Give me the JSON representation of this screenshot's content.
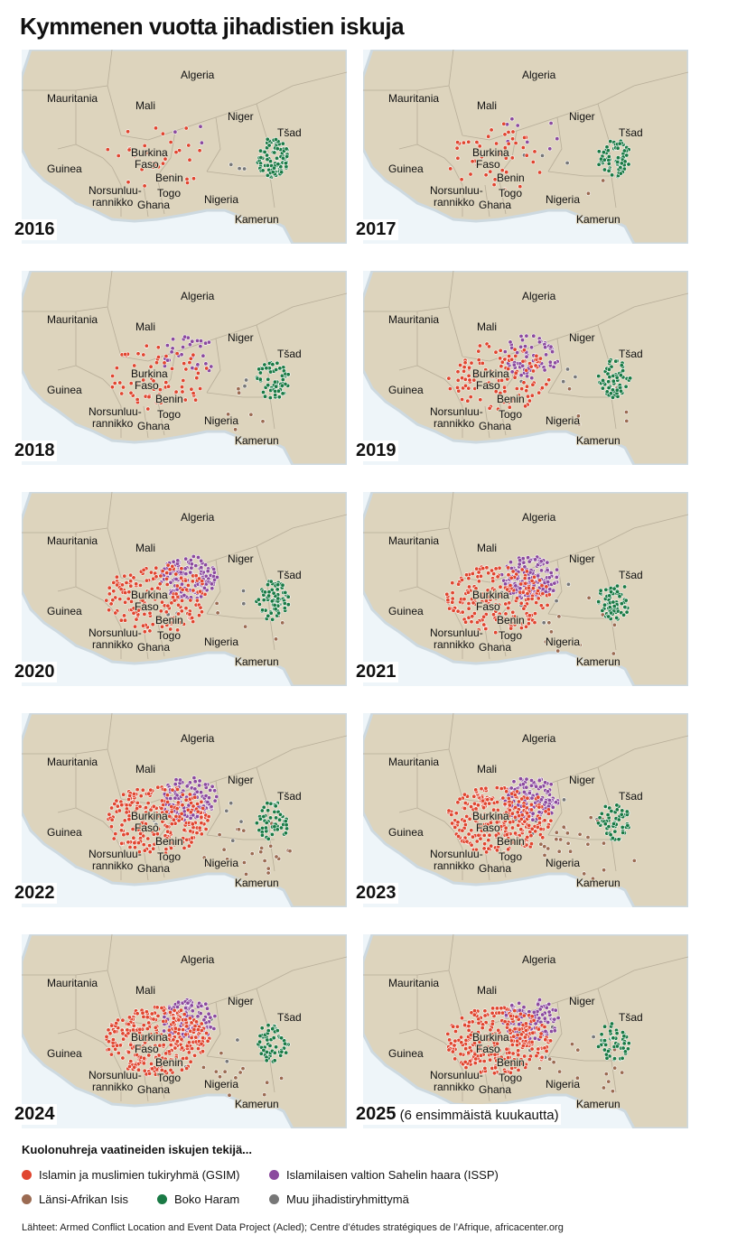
{
  "title": "Kymmenen vuotta jihadistien iskuja",
  "labels": {
    "algeria": "Algeria",
    "mauritania": "Mauritania",
    "mali": "Mali",
    "niger": "Niger",
    "tsad": "Tšad",
    "burkina1": "Burkina",
    "burkina2": "Faso",
    "guinea": "Guinea",
    "benin": "Benin",
    "norsu1": "Norsunluu-",
    "norsu2": "rannikko",
    "togo": "Togo",
    "ghana": "Ghana",
    "nigeria": "Nigeria",
    "kamerun": "Kamerun"
  },
  "colors": {
    "land": "#ddd4bd",
    "sea": "#eef5f9",
    "border": "#b7ad98",
    "gsim": "#e0452f",
    "issp": "#8b4a9e",
    "isis": "#9b6b52",
    "boko": "#1a7a45",
    "other": "#777777"
  },
  "panels": [
    {
      "year": "2016",
      "note": "",
      "counts": {
        "gsim": 30,
        "issp": 3,
        "isis": 0,
        "boko": 100,
        "other": 4
      }
    },
    {
      "year": "2017",
      "note": "",
      "counts": {
        "gsim": 45,
        "issp": 8,
        "isis": 2,
        "boko": 70,
        "other": 3
      }
    },
    {
      "year": "2018",
      "note": "",
      "counts": {
        "gsim": 70,
        "issp": 30,
        "isis": 6,
        "boko": 60,
        "other": 3
      }
    },
    {
      "year": "2019",
      "note": "",
      "counts": {
        "gsim": 120,
        "issp": 70,
        "isis": 6,
        "boko": 60,
        "other": 4
      }
    },
    {
      "year": "2020",
      "note": "",
      "counts": {
        "gsim": 180,
        "issp": 150,
        "isis": 8,
        "boko": 70,
        "other": 5
      }
    },
    {
      "year": "2021",
      "note": "",
      "counts": {
        "gsim": 200,
        "issp": 160,
        "isis": 12,
        "boko": 70,
        "other": 6
      }
    },
    {
      "year": "2022",
      "note": "",
      "counts": {
        "gsim": 250,
        "issp": 120,
        "isis": 25,
        "boko": 60,
        "other": 8
      }
    },
    {
      "year": "2023",
      "note": "",
      "counts": {
        "gsim": 280,
        "issp": 140,
        "isis": 25,
        "boko": 55,
        "other": 6
      }
    },
    {
      "year": "2024",
      "note": "",
      "counts": {
        "gsim": 320,
        "issp": 110,
        "isis": 12,
        "boko": 60,
        "other": 5
      }
    },
    {
      "year": "2025",
      "note": "(6 ensimmäistä kuukautta)",
      "counts": {
        "gsim": 300,
        "issp": 100,
        "isis": 14,
        "boko": 50,
        "other": 6
      }
    }
  ],
  "legend": {
    "title": "Kuolonuhreja vaatineiden iskujen tekijä...",
    "items": [
      {
        "key": "gsim",
        "label": "Islamin ja muslimien tukiryhmä (GSIM)"
      },
      {
        "key": "issp",
        "label": "Islamilaisen valtion Sahelin haara (ISSP)"
      },
      {
        "key": "isis",
        "label": "Länsi-Afrikan Isis"
      },
      {
        "key": "boko",
        "label": "Boko Haram"
      },
      {
        "key": "other",
        "label": "Muu jihadistiryhmittymä"
      }
    ]
  },
  "source": "Lähteet: Armed Conflict Location and Event Data Project (Acled);  Centre d’études stratégiques de l’Afrique, africacenter.org"
}
